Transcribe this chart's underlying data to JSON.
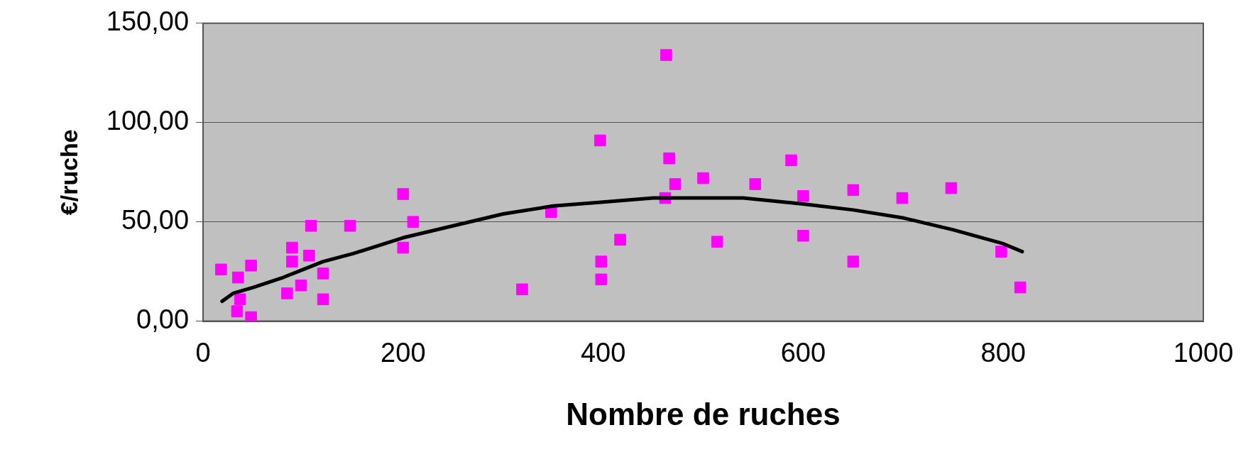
{
  "chart_data": {
    "type": "scatter",
    "xlabel": "Nombre de ruches",
    "ylabel": "€/ruche",
    "xlim": [
      0,
      1000
    ],
    "xticks": [
      0,
      200,
      400,
      600,
      800,
      1000
    ],
    "ylim": [
      0,
      150
    ],
    "yticks": [
      {
        "value": 0,
        "label": "0,00"
      },
      {
        "value": 50,
        "label": "50,00"
      },
      {
        "value": 100,
        "label": "100,00"
      },
      {
        "value": 150,
        "label": "150,00"
      }
    ],
    "grid": "y",
    "legend": false,
    "series": [
      {
        "marker": "square",
        "color": "#ff00ff",
        "x": [
          18,
          35,
          37,
          34,
          48,
          48,
          84,
          89,
          89,
          98,
          106,
          108,
          120,
          120,
          147,
          200,
          200,
          210,
          319,
          348,
          397,
          398,
          398,
          417,
          462,
          463,
          466,
          472,
          500,
          514,
          552,
          588,
          600,
          600,
          650,
          650,
          699,
          748,
          798,
          817
        ],
        "values": [
          26,
          22,
          11,
          5,
          28,
          2,
          14,
          37,
          30,
          18,
          33,
          48,
          24,
          11,
          48,
          64,
          37,
          50,
          16,
          55,
          91,
          30,
          21,
          41,
          62,
          134,
          82,
          69,
          72,
          40,
          69,
          81,
          63,
          43,
          66,
          30,
          62,
          67,
          35,
          17
        ]
      },
      {
        "type": "line",
        "color": "#000000",
        "x": [
          19,
          30,
          50,
          80,
          100,
          120,
          150,
          200,
          250,
          300,
          350,
          400,
          450,
          500,
          540,
          600,
          650,
          700,
          750,
          800,
          819
        ],
        "values": [
          10,
          14,
          17,
          22,
          26,
          30,
          34,
          42,
          48,
          54,
          58,
          60,
          62,
          62,
          62,
          59,
          56,
          52,
          46,
          39,
          35
        ]
      }
    ]
  }
}
